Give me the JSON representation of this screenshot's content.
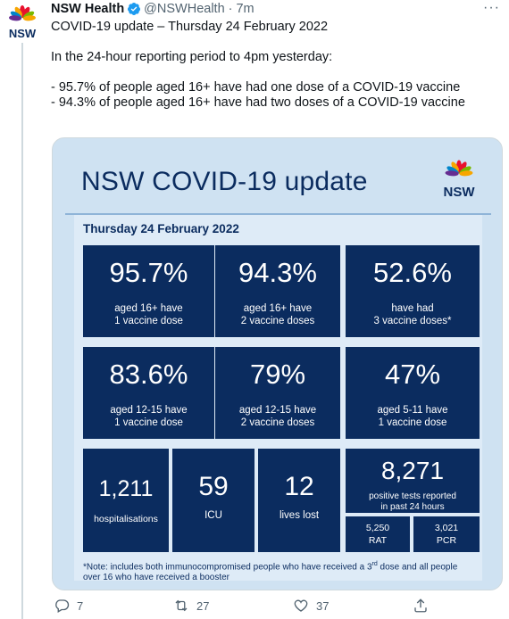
{
  "tweet": {
    "author_name": "NSW Health",
    "handle": "@NSWHealth",
    "separator": "·",
    "time": "7m",
    "more_label": "···",
    "avatar_label": "NSW",
    "lines": [
      "COVID-19 update – Thursday 24 February 2022",
      "In the 24-hour reporting period to 4pm yesterday:",
      "- 95.7% of people aged 16+ have had one dose of a COVID-19 vaccine",
      "- 94.3% of people aged 16+ have had two doses of a COVID-19 vaccine"
    ]
  },
  "card": {
    "title": "NSW COVID-19 update",
    "logo_label": "NSW",
    "date": "Thursday 24 February 2022",
    "stats": [
      {
        "value": "95.7%",
        "label1": "aged 16+ have",
        "label2": "1 vaccine dose"
      },
      {
        "value": "94.3%",
        "label1": "aged 16+ have",
        "label2": "2 vaccine doses"
      },
      {
        "value": "52.6%",
        "label1": "have had",
        "label2": "3 vaccine doses*"
      },
      {
        "value": "83.6%",
        "label1": "aged 12-15 have",
        "label2": "1 vaccine dose"
      },
      {
        "value": "79%",
        "label1": "aged 12-15 have",
        "label2": "2 vaccine doses"
      },
      {
        "value": "47%",
        "label1": "aged 5-11 have",
        "label2": "1 vaccine dose"
      }
    ],
    "hospitalisations": {
      "value": "1,211",
      "label": "hospitalisations"
    },
    "icu": {
      "value": "59",
      "label": "ICU"
    },
    "lives_lost": {
      "value": "12",
      "label": "lives lost"
    },
    "tests": {
      "value": "8,271",
      "label1": "positive tests reported",
      "label2": "in past 24 hours"
    },
    "rat": {
      "value": "5,250",
      "label": "RAT"
    },
    "pcr": {
      "value": "3,021",
      "label": "PCR"
    },
    "note_prefix": "*Note: includes both immunocompromised people who have received a 3",
    "note_sup": "rd",
    "note_suffix": "dose and all people over 16 who have received a booster"
  },
  "actions": {
    "replies": "7",
    "retweets": "27",
    "likes": "37"
  },
  "colors": {
    "navy": "#0b2c5f",
    "card_bg": "#cfe2f2",
    "verified": "#1d9bf0"
  }
}
